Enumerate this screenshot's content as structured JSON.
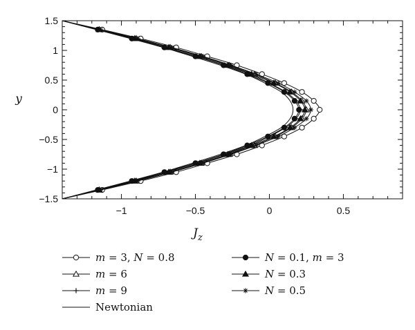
{
  "chart_data": {
    "type": "line",
    "xlabel": "Jz",
    "ylabel": "y",
    "xlim": [
      -1.4,
      0.9
    ],
    "ylim": [
      -1.5,
      1.5
    ],
    "x_ticks": [
      -1,
      -0.5,
      0,
      0.5
    ],
    "y_ticks": [
      -1.5,
      -1,
      -0.5,
      0,
      0.5,
      1,
      1.5
    ],
    "grid": false,
    "legend_position": "bottom",
    "y": [
      -1.5,
      -1.35,
      -1.2,
      -1.05,
      -0.9,
      -0.75,
      -0.6,
      -0.45,
      -0.3,
      -0.15,
      0,
      0.15,
      0.3,
      0.45,
      0.6,
      0.75,
      0.9,
      1.05,
      1.2,
      1.35,
      1.5
    ],
    "series": [
      {
        "name": "m = 3, N = 0.8",
        "marker": "open-circle",
        "x": [
          -1.4,
          -1.13,
          -0.87,
          -0.63,
          -0.42,
          -0.22,
          -0.05,
          0.1,
          0.22,
          0.3,
          0.34,
          0.3,
          0.22,
          0.1,
          -0.05,
          -0.22,
          -0.42,
          -0.63,
          -0.87,
          -1.13,
          -1.4
        ]
      },
      {
        "name": "m = 6",
        "marker": "open-triangle",
        "x": [
          -1.4,
          -1.15,
          -0.9,
          -0.67,
          -0.46,
          -0.27,
          -0.1,
          0.04,
          0.15,
          0.22,
          0.25,
          0.22,
          0.15,
          0.04,
          -0.1,
          -0.27,
          -0.46,
          -0.67,
          -0.9,
          -1.15,
          -1.4
        ]
      },
      {
        "name": "m = 9",
        "marker": "plus",
        "x": [
          -1.4,
          -1.16,
          -0.92,
          -0.7,
          -0.49,
          -0.3,
          -0.13,
          0.0,
          0.11,
          0.18,
          0.21,
          0.18,
          0.11,
          0.0,
          -0.13,
          -0.3,
          -0.49,
          -0.7,
          -0.92,
          -1.16,
          -1.4
        ]
      },
      {
        "name": "Newtonian",
        "marker": "none",
        "x": [
          -1.4,
          -1.17,
          -0.94,
          -0.72,
          -0.52,
          -0.33,
          -0.16,
          -0.03,
          0.08,
          0.14,
          0.16,
          0.14,
          0.08,
          -0.03,
          -0.16,
          -0.33,
          -0.52,
          -0.72,
          -0.94,
          -1.17,
          -1.4
        ]
      },
      {
        "name": "N = 0.1, m = 3",
        "marker": "filled-circle",
        "x": [
          -1.4,
          -1.16,
          -0.93,
          -0.71,
          -0.5,
          -0.31,
          -0.15,
          -0.01,
          0.1,
          0.17,
          0.2,
          0.17,
          0.1,
          -0.01,
          -0.15,
          -0.31,
          -0.5,
          -0.71,
          -0.93,
          -1.16,
          -1.4
        ]
      },
      {
        "name": "N = 0.3",
        "marker": "filled-triangle",
        "x": [
          -1.4,
          -1.15,
          -0.91,
          -0.68,
          -0.47,
          -0.28,
          -0.12,
          0.03,
          0.14,
          0.21,
          0.24,
          0.21,
          0.14,
          0.03,
          -0.12,
          -0.28,
          -0.47,
          -0.68,
          -0.91,
          -1.15,
          -1.4
        ]
      },
      {
        "name": "N = 0.5",
        "marker": "asterisk",
        "x": [
          -1.4,
          -1.14,
          -0.89,
          -0.66,
          -0.45,
          -0.26,
          -0.09,
          0.06,
          0.17,
          0.25,
          0.28,
          0.25,
          0.17,
          0.06,
          -0.09,
          -0.26,
          -0.45,
          -0.66,
          -0.89,
          -1.14,
          -1.4
        ]
      }
    ]
  },
  "legend": {
    "items": [
      {
        "parts": [
          {
            "t": "m",
            "i": true
          },
          {
            "t": " = 3, ",
            "i": false
          },
          {
            "t": "N",
            "i": true
          },
          {
            "t": " = 0.8",
            "i": false
          }
        ]
      },
      {
        "parts": [
          {
            "t": "m",
            "i": true
          },
          {
            "t": " = 6",
            "i": false
          }
        ]
      },
      {
        "parts": [
          {
            "t": "m",
            "i": true
          },
          {
            "t": " = 9",
            "i": false
          }
        ]
      },
      {
        "parts": [
          {
            "t": "Newtonian",
            "i": false
          }
        ]
      },
      {
        "parts": [
          {
            "t": "N",
            "i": true
          },
          {
            "t": " = 0.1, ",
            "i": false
          },
          {
            "t": "m",
            "i": true
          },
          {
            "t": " = 3",
            "i": false
          }
        ]
      },
      {
        "parts": [
          {
            "t": "N",
            "i": true
          },
          {
            "t": " = 0.3",
            "i": false
          }
        ]
      },
      {
        "parts": [
          {
            "t": "N",
            "i": true
          },
          {
            "t": " = 0.5",
            "i": false
          }
        ]
      }
    ]
  },
  "colors": {
    "line": "#111111",
    "background": "#ffffff"
  }
}
